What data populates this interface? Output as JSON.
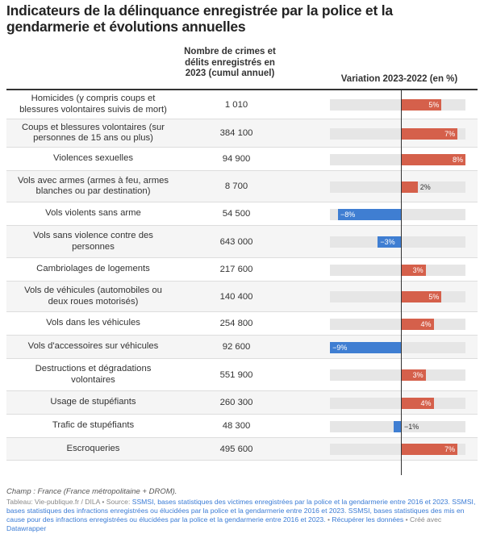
{
  "title": "Indicateurs de la délinquance enregistrée par la police et la gendarmerie et évolutions annuelles",
  "columns": {
    "count": "Nombre de crimes et délits enregistrés en 2023 (cumul annuel)",
    "variation": "Variation 2023-2022 (en %)"
  },
  "colors": {
    "positive": "#d5604b",
    "negative": "#3f7ed2",
    "track": "#e6e6e6"
  },
  "chart_data": {
    "type": "table",
    "title": "Indicateurs de la délinquance enregistrée par la police et la gendarmerie et évolutions annuelles",
    "variation_range": [
      -9,
      8
    ],
    "rows": [
      {
        "label": "Homicides (y compris coups et blessures volontaires suivis de mort)",
        "count": "1 010",
        "variation": 5,
        "variation_label": "5%"
      },
      {
        "label": "Coups et blessures volontaires (sur personnes de 15 ans ou plus)",
        "count": "384 100",
        "variation": 7,
        "variation_label": "7%"
      },
      {
        "label": "Violences sexuelles",
        "count": "94 900",
        "variation": 8,
        "variation_label": "8%"
      },
      {
        "label": "Vols avec armes (armes à feu, armes blanches ou par destination)",
        "count": "8 700",
        "variation": 2,
        "variation_label": "2%"
      },
      {
        "label": "Vols violents sans arme",
        "count": "54 500",
        "variation": -8,
        "variation_label": "−8%"
      },
      {
        "label": "Vols sans violence contre des personnes",
        "count": "643 000",
        "variation": -3,
        "variation_label": "−3%"
      },
      {
        "label": "Cambriolages de logements",
        "count": "217 600",
        "variation": 3,
        "variation_label": "3%"
      },
      {
        "label": "Vols de véhicules (automobiles ou deux roues motorisés)",
        "count": "140 400",
        "variation": 5,
        "variation_label": "5%"
      },
      {
        "label": "Vols dans les véhicules",
        "count": "254 800",
        "variation": 4,
        "variation_label": "4%"
      },
      {
        "label": "Vols d'accessoires sur véhicules",
        "count": "92 600",
        "variation": -9,
        "variation_label": "−9%"
      },
      {
        "label": "Destructions et dégradations volontaires",
        "count": "551 900",
        "variation": 3,
        "variation_label": "3%"
      },
      {
        "label": "Usage de stupéfiants",
        "count": "260 300",
        "variation": 4,
        "variation_label": "4%"
      },
      {
        "label": "Trafic de stupéfiants",
        "count": "48 300",
        "variation": -1,
        "variation_label": "−1%"
      },
      {
        "label": "Escroqueries",
        "count": "495 600",
        "variation": 7,
        "variation_label": "7%"
      }
    ]
  },
  "footer": {
    "scope": "Champ : France (France métropolitaine + DROM).",
    "prefix": "Tableau: Vie-publique.fr / DILA • Source: ",
    "sources": "SSMSI, bases statistiques des victimes enregistrées par la police et la gendarmerie entre 2016 et 2023. SSMSI, bases statistiques des infractions enregistrées ou élucidées par la police et la gendarmerie entre 2016 et 2023. SSMSI, bases statistiques des mis en cause pour des infractions enregistrées ou élucidées par la police et la gendarmerie entre 2016 et 2023.",
    "separator": " • ",
    "data_link": "Récupérer les données",
    "created_prefix": " • Créé avec ",
    "created_link": "Datawrapper"
  }
}
